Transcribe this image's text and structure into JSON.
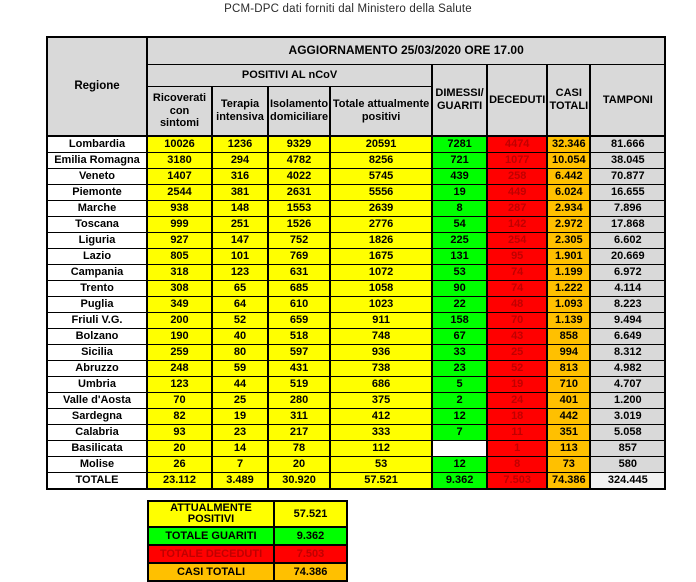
{
  "page_title": "PCM-DPC dati forniti dal Ministero della Salute",
  "main_table": {
    "update_header": "AGGIORNAMENTO 25/03/2020 ORE 17.00",
    "region_column_header": "Regione",
    "positivi_group_header": "POSITIVI AL nCoV",
    "sub_headers": [
      "Ricoverati con sintomi",
      "Terapia intensiva",
      "Isolamento domiciliare",
      "Totale attualmente positivi"
    ],
    "right_headers": [
      "DIMESSI/ GUARITI",
      "DECEDUTI",
      "CASI TOTALI",
      "TAMPONI"
    ],
    "column_keys": [
      "ricoverati-con-sintomi",
      "terapia-intensiva",
      "isolamento-domiciliare",
      "totale-attualmente-positivi",
      "dimessi-guariti",
      "deceduti",
      "casi-totali",
      "tamponi"
    ],
    "rows": [
      {
        "region": "Lombardia",
        "values": [
          "10026",
          "1236",
          "9329",
          "20591",
          "7281",
          "4474",
          "32.346",
          "81.666"
        ]
      },
      {
        "region": "Emilia Romagna",
        "values": [
          "3180",
          "294",
          "4782",
          "8256",
          "721",
          "1077",
          "10.054",
          "38.045"
        ]
      },
      {
        "region": "Veneto",
        "values": [
          "1407",
          "316",
          "4022",
          "5745",
          "439",
          "258",
          "6.442",
          "70.877"
        ]
      },
      {
        "region": "Piemonte",
        "values": [
          "2544",
          "381",
          "2631",
          "5556",
          "19",
          "449",
          "6.024",
          "16.655"
        ]
      },
      {
        "region": "Marche",
        "values": [
          "938",
          "148",
          "1553",
          "2639",
          "8",
          "287",
          "2.934",
          "7.896"
        ]
      },
      {
        "region": "Toscana",
        "values": [
          "999",
          "251",
          "1526",
          "2776",
          "54",
          "142",
          "2.972",
          "17.868"
        ]
      },
      {
        "region": "Liguria",
        "values": [
          "927",
          "147",
          "752",
          "1826",
          "225",
          "254",
          "2.305",
          "6.602"
        ]
      },
      {
        "region": "Lazio",
        "values": [
          "805",
          "101",
          "769",
          "1675",
          "131",
          "95",
          "1.901",
          "20.669"
        ]
      },
      {
        "region": "Campania",
        "values": [
          "318",
          "123",
          "631",
          "1072",
          "53",
          "74",
          "1.199",
          "6.972"
        ]
      },
      {
        "region": "Trento",
        "values": [
          "308",
          "65",
          "685",
          "1058",
          "90",
          "74",
          "1.222",
          "4.114"
        ]
      },
      {
        "region": "Puglia",
        "values": [
          "349",
          "64",
          "610",
          "1023",
          "22",
          "48",
          "1.093",
          "8.223"
        ]
      },
      {
        "region": "Friuli V.G.",
        "values": [
          "200",
          "52",
          "659",
          "911",
          "158",
          "70",
          "1.139",
          "9.494"
        ]
      },
      {
        "region": "Bolzano",
        "values": [
          "190",
          "40",
          "518",
          "748",
          "67",
          "43",
          "858",
          "6.649"
        ]
      },
      {
        "region": "Sicilia",
        "values": [
          "259",
          "80",
          "597",
          "936",
          "33",
          "25",
          "994",
          "8.312"
        ]
      },
      {
        "region": "Abruzzo",
        "values": [
          "248",
          "59",
          "431",
          "738",
          "23",
          "52",
          "813",
          "4.982"
        ]
      },
      {
        "region": "Umbria",
        "values": [
          "123",
          "44",
          "519",
          "686",
          "5",
          "19",
          "710",
          "4.707"
        ]
      },
      {
        "region": "Valle d'Aosta",
        "values": [
          "70",
          "25",
          "280",
          "375",
          "2",
          "24",
          "401",
          "1.200"
        ]
      },
      {
        "region": "Sardegna",
        "values": [
          "82",
          "19",
          "311",
          "412",
          "12",
          "18",
          "442",
          "3.019"
        ]
      },
      {
        "region": "Calabria",
        "values": [
          "93",
          "23",
          "217",
          "333",
          "7",
          "11",
          "351",
          "5.058"
        ]
      },
      {
        "region": "Basilicata",
        "values": [
          "20",
          "14",
          "78",
          "112",
          "",
          "1",
          "113",
          "857"
        ]
      },
      {
        "region": "Molise",
        "values": [
          "26",
          "7",
          "20",
          "53",
          "12",
          "8",
          "73",
          "580"
        ]
      },
      {
        "region": "TOTALE",
        "values": [
          "23.112",
          "3.489",
          "30.920",
          "57.521",
          "9.362",
          "7.503",
          "74.386",
          "324.445"
        ],
        "is_total": true
      }
    ]
  },
  "summary_table": {
    "rows": [
      {
        "label": "ATTUALMENTE POSITIVI",
        "value": "57.521",
        "style": "yellow"
      },
      {
        "label": "TOTALE GUARITI",
        "value": "9.362",
        "style": "green"
      },
      {
        "label": "TOTALE DECEDUTI",
        "value": "7.503",
        "style": "red"
      },
      {
        "label": "CASI TOTALI",
        "value": "74.386",
        "style": "orange"
      }
    ]
  },
  "colors": {
    "cell_yellow": "#FFFF00",
    "cell_green": "#00FF00",
    "cell_red": "#FF0000",
    "cell_orange": "#FFC000",
    "header_gray": "#D9D9D9",
    "total_tamponi_gray": "#F2F2F2",
    "deceduti_text": "#C00000"
  }
}
